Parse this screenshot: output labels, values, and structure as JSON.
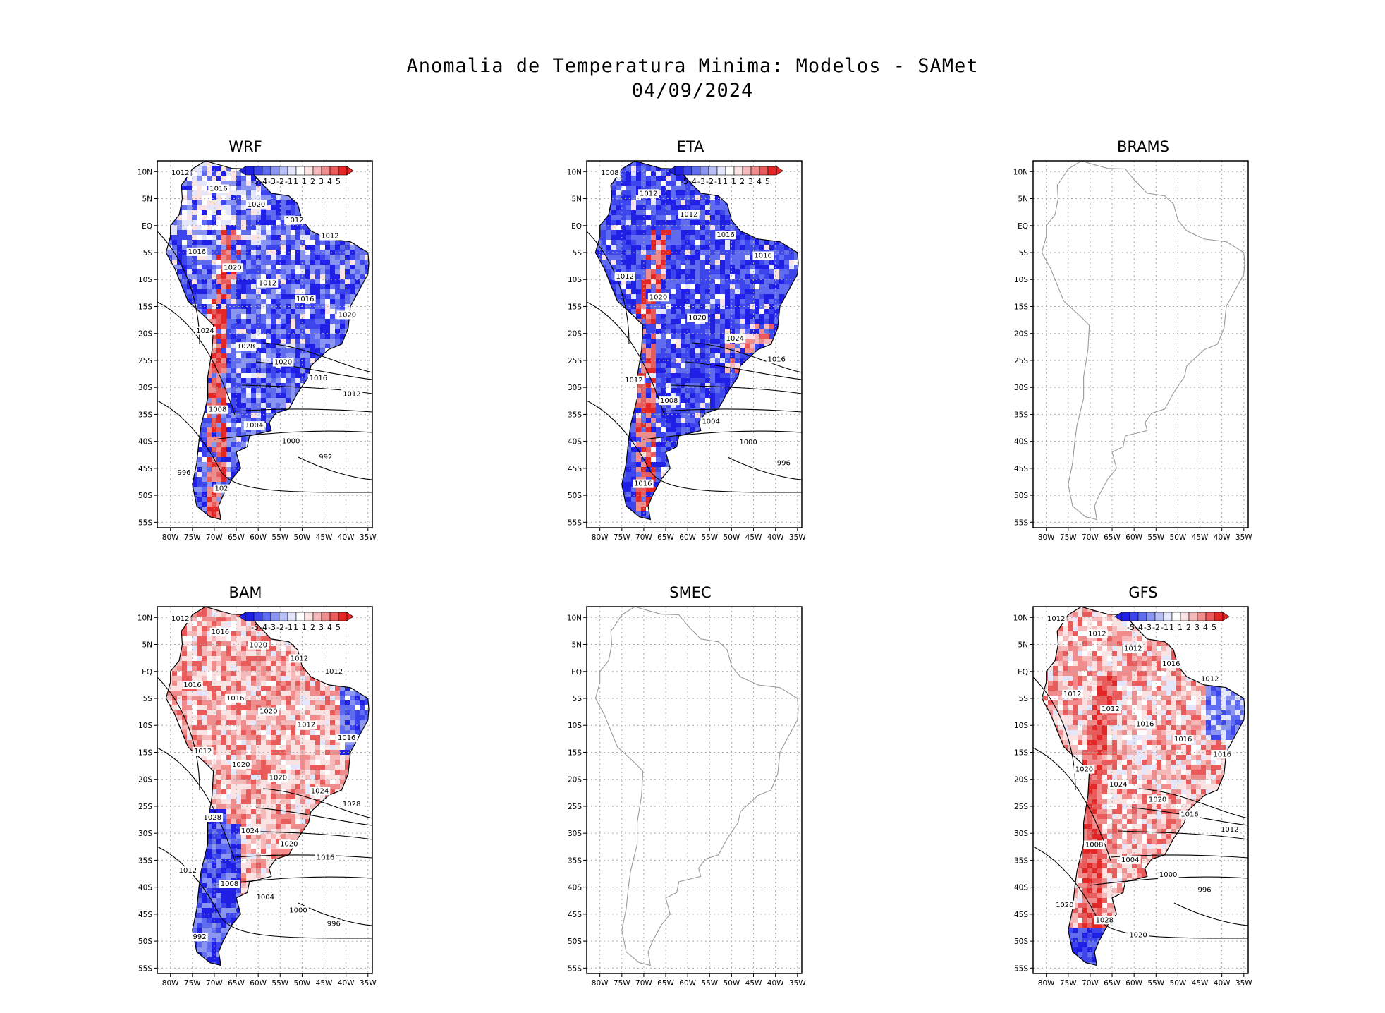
{
  "figure": {
    "title_line1": "Anomalia de Temperatura Minima: Modelos - SAMet",
    "title_line2": "04/09/2024"
  },
  "axes": {
    "lat_ticks": [
      "10N",
      "5N",
      "EQ",
      "5S",
      "10S",
      "15S",
      "20S",
      "25S",
      "30S",
      "35S",
      "40S",
      "45S",
      "50S",
      "55S"
    ],
    "lon_ticks": [
      "80W",
      "75W",
      "70W",
      "65W",
      "60W",
      "55W",
      "50W",
      "45W",
      "40W",
      "35W"
    ],
    "lat_range": [
      -56,
      12
    ],
    "lon_range": [
      -83,
      -34
    ]
  },
  "colorbar": {
    "labels": [
      "-5",
      "-4",
      "-3",
      "-2",
      "-1",
      "1",
      "1",
      "2",
      "3",
      "4",
      "5"
    ],
    "colors": [
      "#1f1fe6",
      "#3c46ec",
      "#5f6cef",
      "#8a95f2",
      "#b7bff6",
      "#e4e7fb",
      "#ffffff",
      "#fbe3e3",
      "#f6b9b9",
      "#f08c8c",
      "#e95a5a",
      "#e32626"
    ]
  },
  "panels": [
    {
      "name": "WRF",
      "has_data": true,
      "anomaly_pattern": "mostly negative (cold) over continent, positive strip along Andes",
      "isobars": [
        "1000",
        "1004",
        "1008",
        "1012",
        "1016",
        "1020",
        "1024",
        "1028"
      ],
      "isobar_labels": [
        "1012",
        "1016",
        "1020",
        "1012",
        "1012",
        "1016",
        "1020",
        "1012",
        "1016",
        "1020",
        "1024",
        "1028",
        "1020",
        "1016",
        "1012",
        "1008",
        "1004",
        "1000",
        "992",
        "996",
        "102"
      ]
    },
    {
      "name": "ETA",
      "has_data": true,
      "anomaly_pattern": "strongly negative (cold) over most of continent, positive along Andes and southeast Brazil",
      "isobars": [
        "1000",
        "1004",
        "1008",
        "1012",
        "1016",
        "1020",
        "1024"
      ],
      "isobar_labels": [
        "1008",
        "1012",
        "1012",
        "1016",
        "1016",
        "1012",
        "1020",
        "1020",
        "1024",
        "1016",
        "1012",
        "1008",
        "1004",
        "1000",
        "996",
        "1016"
      ]
    },
    {
      "name": "BRAMS",
      "has_data": false,
      "anomaly_pattern": "no data - coastlines only",
      "isobars": [],
      "isobar_labels": []
    },
    {
      "name": "BAM",
      "has_data": true,
      "anomaly_pattern": "mostly positive (warm) over central continent, negative in northeast and southern Andes",
      "isobars": [
        "1000",
        "1004",
        "1008",
        "1012",
        "1016",
        "1020",
        "1024",
        "1028"
      ],
      "isobar_labels": [
        "1012",
        "1016",
        "1020",
        "1012",
        "1012",
        "1016",
        "1016",
        "1020",
        "1012",
        "1016",
        "1012",
        "1020",
        "1020",
        "1024",
        "1028",
        "1028",
        "1024",
        "1020",
        "1016",
        "1012",
        "1008",
        "1004",
        "1000",
        "996",
        "992"
      ]
    },
    {
      "name": "SMEC",
      "has_data": false,
      "anomaly_pattern": "no data - coastlines only",
      "isobars": [],
      "isobar_labels": []
    },
    {
      "name": "GFS",
      "has_data": true,
      "anomaly_pattern": "positive (warm) over central continent and Andes, negative in northeast and far south",
      "isobars": [
        "1000",
        "1004",
        "1008",
        "1012",
        "1016",
        "1020",
        "1024",
        "1028"
      ],
      "isobar_labels": [
        "1012",
        "1012",
        "1012",
        "1016",
        "1012",
        "1012",
        "1012",
        "1016",
        "1016",
        "1016",
        "1020",
        "1024",
        "1020",
        "1016",
        "1012",
        "1008",
        "1004",
        "1000",
        "996",
        "1020",
        "1028",
        "1020"
      ]
    }
  ]
}
